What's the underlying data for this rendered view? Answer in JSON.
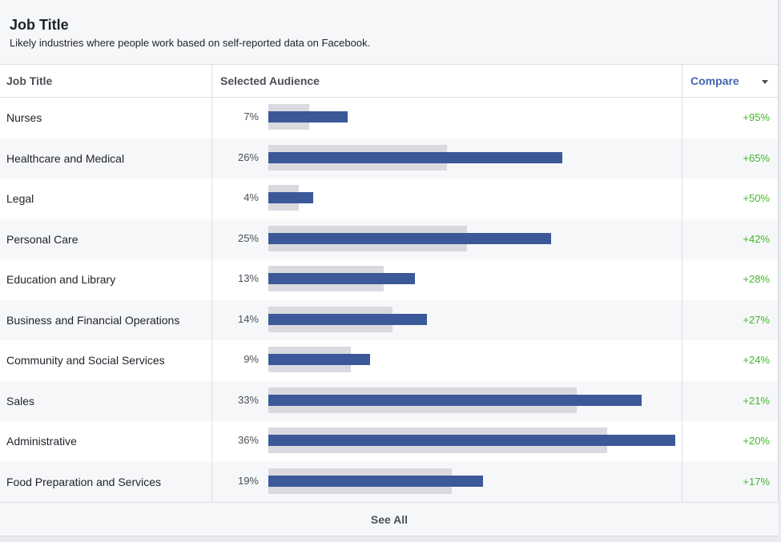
{
  "header": {
    "title": "Job Title",
    "subtitle": "Likely industries where people work based on self-reported data on Facebook."
  },
  "table": {
    "col_job": "Job Title",
    "col_audience": "Selected Audience",
    "col_compare": "Compare"
  },
  "colors": {
    "audience_bar": "#3b5998",
    "baseline_bar": "#d8dadf",
    "delta_positive": "#42b72a",
    "link": "#4267b2"
  },
  "rows": [
    {
      "name": "Nurses",
      "pct": "7%",
      "audience": 7,
      "baseline": 3.6,
      "delta": "+95%"
    },
    {
      "name": "Healthcare and Medical",
      "pct": "26%",
      "audience": 26,
      "baseline": 15.8,
      "delta": "+65%"
    },
    {
      "name": "Legal",
      "pct": "4%",
      "audience": 4,
      "baseline": 2.7,
      "delta": "+50%"
    },
    {
      "name": "Personal Care",
      "pct": "25%",
      "audience": 25,
      "baseline": 17.6,
      "delta": "+42%"
    },
    {
      "name": "Education and Library",
      "pct": "13%",
      "audience": 13,
      "baseline": 10.2,
      "delta": "+28%"
    },
    {
      "name": "Business and Financial Operations",
      "pct": "14%",
      "audience": 14,
      "baseline": 11,
      "delta": "+27%"
    },
    {
      "name": "Community and Social Services",
      "pct": "9%",
      "audience": 9,
      "baseline": 7.3,
      "delta": "+24%"
    },
    {
      "name": "Sales",
      "pct": "33%",
      "audience": 33,
      "baseline": 27.3,
      "delta": "+21%"
    },
    {
      "name": "Administrative",
      "pct": "36%",
      "audience": 36,
      "baseline": 30,
      "delta": "+20%"
    },
    {
      "name": "Food Preparation and Services",
      "pct": "19%",
      "audience": 19,
      "baseline": 16.2,
      "delta": "+17%"
    }
  ],
  "footer": {
    "see_all": "See All"
  }
}
